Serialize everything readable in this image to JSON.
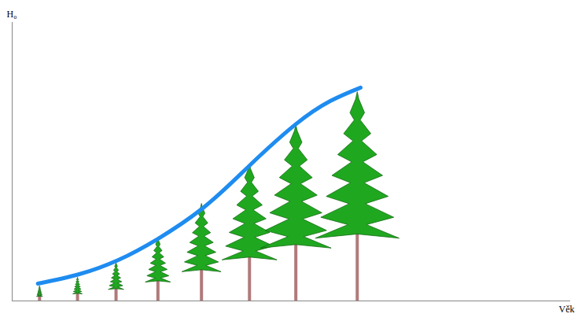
{
  "chart_data": {
    "type": "line",
    "xlabel": "Věk",
    "ylabel": "H₀",
    "x": [
      4.6,
      12.0,
      19.0,
      26.1,
      34.5,
      42.5,
      50.7,
      57.0,
      62.4
    ],
    "values": [
      6.2,
      9.6,
      14.7,
      22.3,
      33.9,
      48.6,
      63.3,
      71.8,
      76.6
    ],
    "color": "#1e8cf0",
    "trees": {
      "x": [
        4.9,
        11.7,
        18.6,
        26.1,
        33.9,
        42.5,
        50.8,
        61.8
      ],
      "values": [
        5.4,
        8.5,
        13.8,
        22.6,
        35.0,
        49.2,
        63.3,
        75.1
      ]
    },
    "xlim": [
      0,
      100
    ],
    "ylim": [
      0,
      100
    ],
    "tick_labels": false,
    "grid": false
  }
}
